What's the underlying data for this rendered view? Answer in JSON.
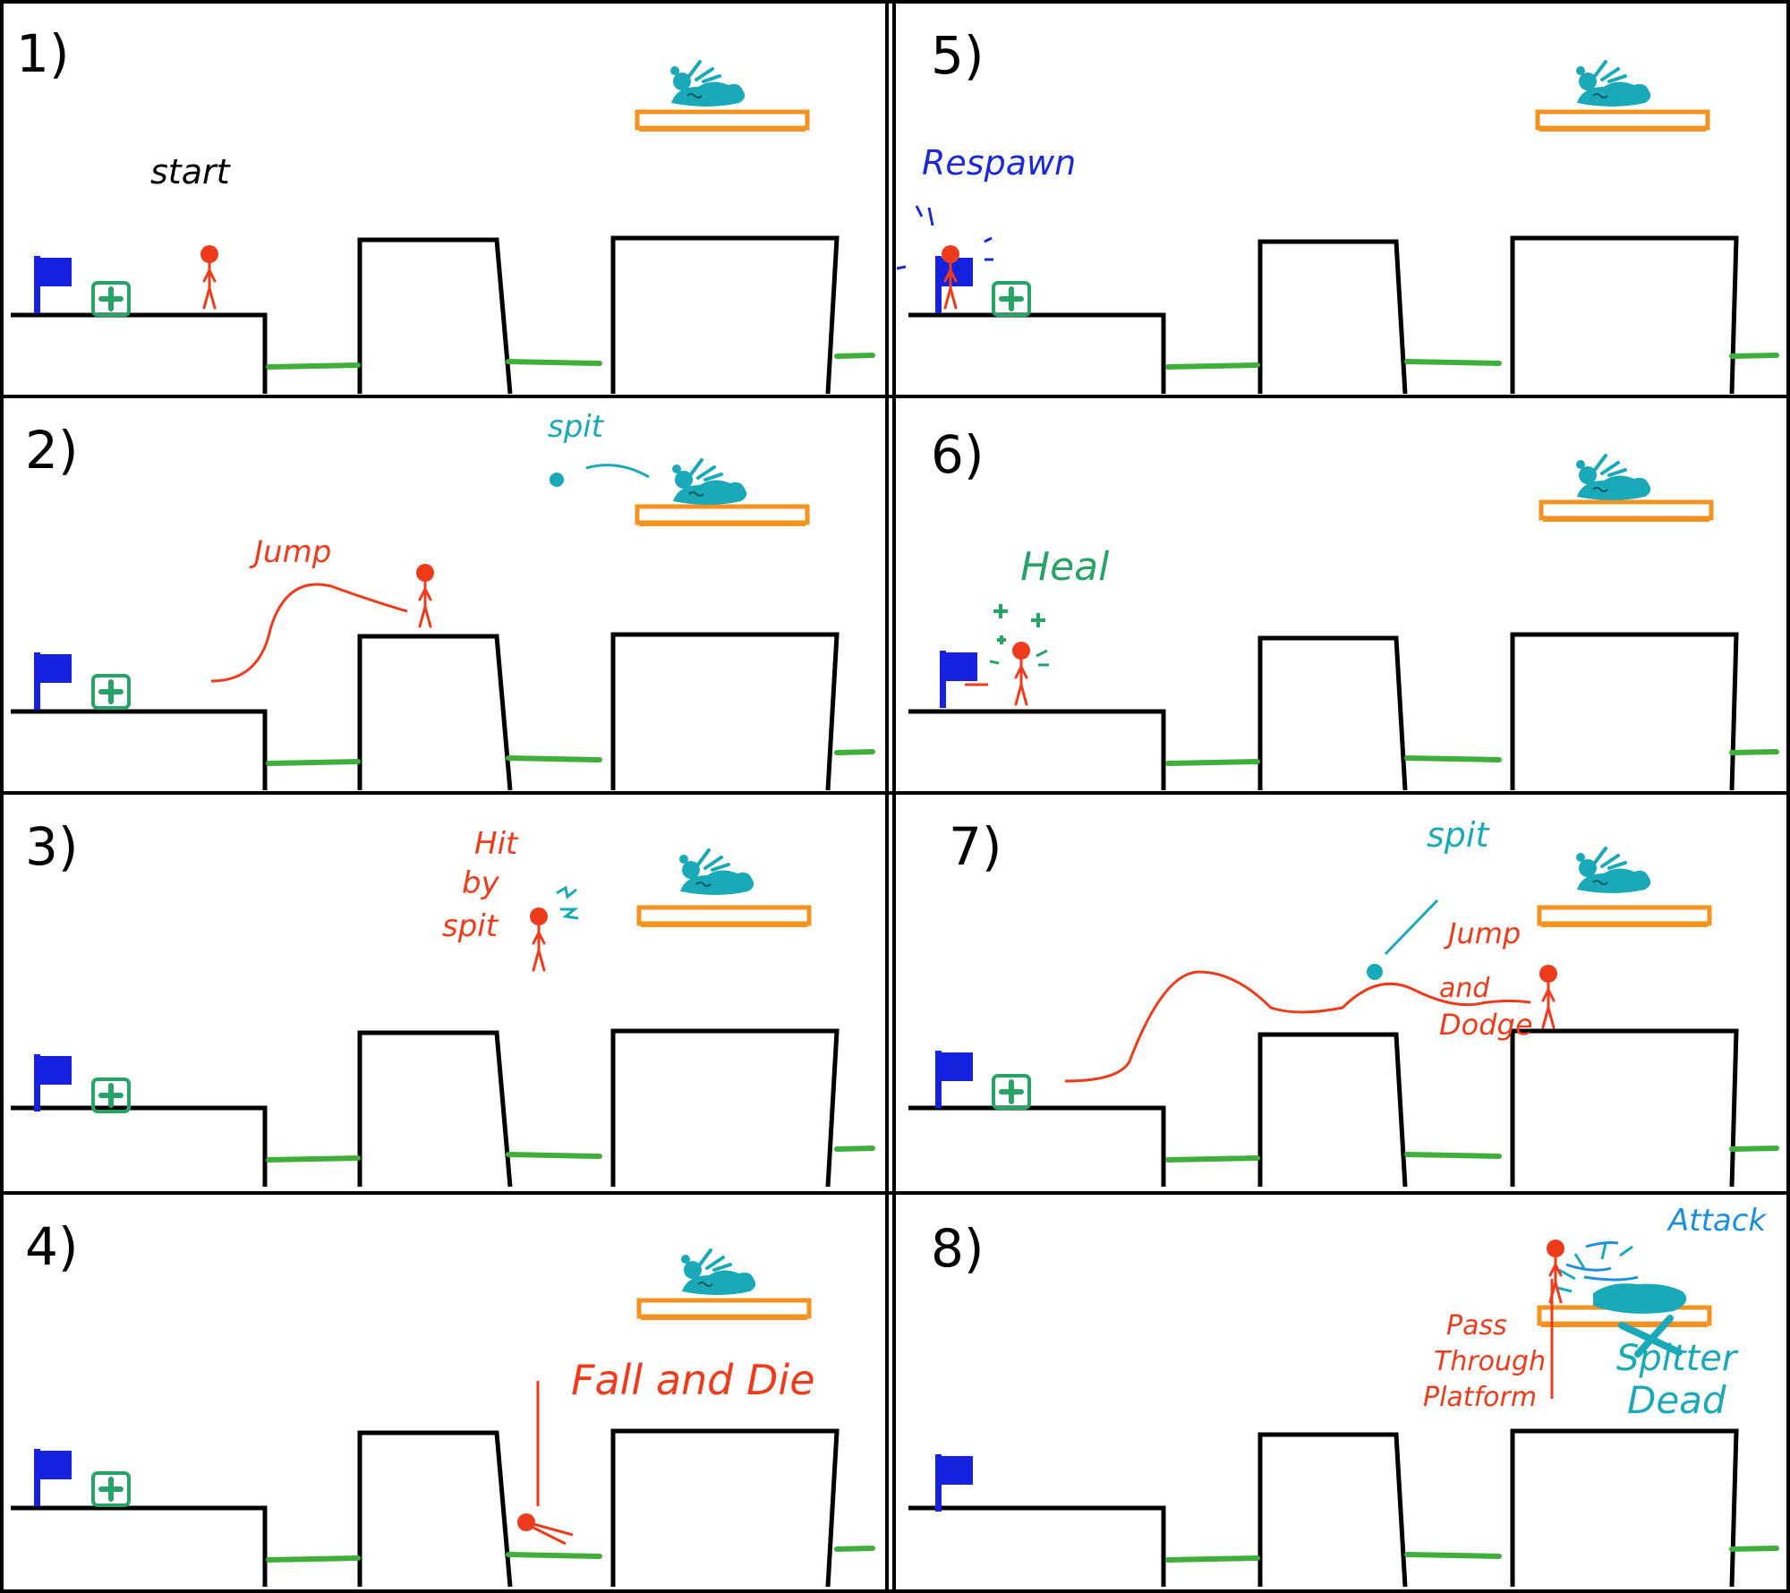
{
  "colors": {
    "player": "#ee3b1c",
    "spitter": "#1aa9b8",
    "platform": "#f39221",
    "grass": "#3fae3a",
    "flag": "#1622e0",
    "heal": "#27a367",
    "respawn_text": "#1b2ad6",
    "attack_text": "#1d8fe0",
    "ink": "#000000"
  },
  "icons": {
    "checkpoint": "blue-flag",
    "health_pickup": "green-plus-box",
    "enemy": "teal-spitter-creature"
  },
  "panels": [
    {
      "number": "1)",
      "notes": {
        "start": "start"
      }
    },
    {
      "number": "2)",
      "notes": {
        "spit": "spit",
        "jump": "Jump"
      }
    },
    {
      "number": "3)",
      "notes": {
        "hit_line1": "Hit",
        "hit_line2": "by",
        "hit_line3": "spit"
      }
    },
    {
      "number": "4)",
      "notes": {
        "fall": "Fall and Die"
      }
    },
    {
      "number": "5)",
      "notes": {
        "respawn": "Respawn"
      }
    },
    {
      "number": "6)",
      "notes": {
        "heal": "Heal"
      }
    },
    {
      "number": "7)",
      "notes": {
        "spit": "spit",
        "jump": "Jump",
        "and": "and",
        "dodge": "Dodge"
      }
    },
    {
      "number": "8)",
      "notes": {
        "attack": "Attack",
        "pass1": "Pass",
        "pass2": "Through",
        "pass3": "Platform",
        "dead1": "Spitter",
        "dead2": "Dead"
      }
    }
  ]
}
